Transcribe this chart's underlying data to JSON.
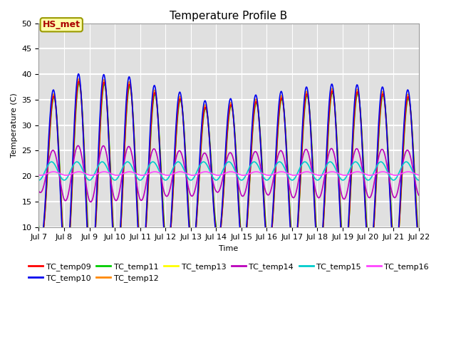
{
  "title": "Temperature Profile B",
  "xlabel": "Time",
  "ylabel": "Temperature (C)",
  "ylim": [
    10,
    50
  ],
  "series_names": [
    "TC_temp09",
    "TC_temp10",
    "TC_temp11",
    "TC_temp12",
    "TC_temp13",
    "TC_temp14",
    "TC_temp15",
    "TC_temp16"
  ],
  "series_colors": [
    "#ff0000",
    "#0000ee",
    "#00cc00",
    "#ff8800",
    "#ffff00",
    "#bb00bb",
    "#00cccc",
    "#ff44ff"
  ],
  "annotation_text": "HS_met",
  "annotation_color": "#aa0000",
  "annotation_bg": "#ffffaa",
  "background_color": "#e0e0e0",
  "grid_color": "white",
  "title_fontsize": 11,
  "axis_fontsize": 8,
  "tick_fontsize": 8,
  "legend_fontsize": 8
}
